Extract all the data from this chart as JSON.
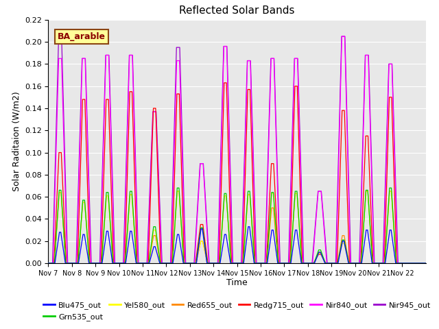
{
  "title": "Reflected Solar Bands",
  "xlabel": "Time",
  "ylabel_actual": "Solar Raditaion (W/m2)",
  "annotation": "BA_arable",
  "ylim": [
    0.0,
    0.22
  ],
  "background_color": "#e8e8e8",
  "series": {
    "Blu475_out": {
      "color": "#0000ff"
    },
    "Grn535_out": {
      "color": "#00cc00"
    },
    "Yel580_out": {
      "color": "#ffff00"
    },
    "Red655_out": {
      "color": "#ff8800"
    },
    "Redg715_out": {
      "color": "#ff0000"
    },
    "Nir840_out": {
      "color": "#ff00ff"
    },
    "Nir945_out": {
      "color": "#9900cc"
    }
  },
  "xtick_labels": [
    "Nov 7",
    "Nov 8",
    "Nov 9",
    "Nov 10",
    "Nov 11",
    "Nov 12",
    "Nov 13",
    "Nov 14",
    "Nov 15",
    "Nov 16",
    "Nov 17",
    "Nov 18",
    "Nov 19",
    "Nov 20",
    "Nov 21",
    "Nov 22"
  ],
  "n_days": 16,
  "peaks": [
    {
      "blu": 0.028,
      "grn": 0.066,
      "yel": 0.064,
      "red": 0.064,
      "redg": 0.1,
      "nir840": 0.185,
      "nir945": 0.199
    },
    {
      "blu": 0.026,
      "grn": 0.057,
      "yel": 0.055,
      "red": 0.055,
      "redg": 0.148,
      "nir840": 0.185,
      "nir945": 0.185
    },
    {
      "blu": 0.029,
      "grn": 0.064,
      "yel": 0.061,
      "red": 0.061,
      "redg": 0.148,
      "nir840": 0.188,
      "nir945": 0.188
    },
    {
      "blu": 0.029,
      "grn": 0.065,
      "yel": 0.062,
      "red": 0.062,
      "redg": 0.155,
      "nir840": 0.188,
      "nir945": 0.188
    },
    {
      "blu": 0.015,
      "grn": 0.033,
      "yel": 0.03,
      "red": 0.025,
      "redg": 0.14,
      "nir840": 0.137,
      "nir945": 0.137
    },
    {
      "blu": 0.026,
      "grn": 0.068,
      "yel": 0.065,
      "red": 0.065,
      "redg": 0.153,
      "nir840": 0.183,
      "nir945": 0.195
    },
    {
      "blu": 0.031,
      "grn": 0.032,
      "yel": 0.02,
      "red": 0.02,
      "redg": 0.035,
      "nir840": 0.09,
      "nir945": 0.09
    },
    {
      "blu": 0.026,
      "grn": 0.063,
      "yel": 0.061,
      "red": 0.061,
      "redg": 0.163,
      "nir840": 0.196,
      "nir945": 0.196
    },
    {
      "blu": 0.033,
      "grn": 0.065,
      "yel": 0.062,
      "red": 0.062,
      "redg": 0.157,
      "nir840": 0.183,
      "nir945": 0.183
    },
    {
      "blu": 0.03,
      "grn": 0.064,
      "yel": 0.063,
      "red": 0.05,
      "redg": 0.09,
      "nir840": 0.185,
      "nir945": 0.185
    },
    {
      "blu": 0.03,
      "grn": 0.065,
      "yel": 0.063,
      "red": 0.063,
      "redg": 0.16,
      "nir840": 0.185,
      "nir945": 0.185
    },
    {
      "blu": 0.01,
      "grn": 0.012,
      "yel": 0.009,
      "red": 0.01,
      "redg": 0.008,
      "nir840": 0.065,
      "nir945": 0.065
    },
    {
      "blu": 0.02,
      "grn": 0.021,
      "yel": 0.018,
      "red": 0.025,
      "redg": 0.138,
      "nir840": 0.205,
      "nir945": 0.205
    },
    {
      "blu": 0.03,
      "grn": 0.066,
      "yel": 0.065,
      "red": 0.065,
      "redg": 0.115,
      "nir840": 0.188,
      "nir945": 0.188
    },
    {
      "blu": 0.03,
      "grn": 0.068,
      "yel": 0.065,
      "red": 0.065,
      "redg": 0.15,
      "nir840": 0.18,
      "nir945": 0.18
    },
    {
      "blu": 0.0,
      "grn": 0.0,
      "yel": 0.0,
      "red": 0.0,
      "redg": 0.0,
      "nir840": 0.0,
      "nir945": 0.0
    }
  ]
}
